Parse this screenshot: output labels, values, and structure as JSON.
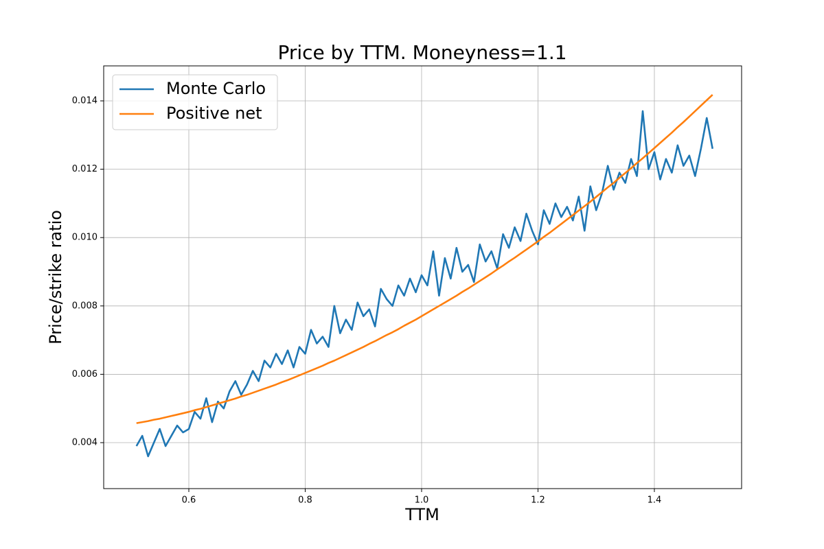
{
  "chart_data": {
    "type": "line",
    "title": "Price by TTM. Moneyness=1.1",
    "x_label": "TTM",
    "y_label": "Price/strike ratio",
    "x": [
      0.51,
      0.52,
      0.53,
      0.54,
      0.55,
      0.56,
      0.57,
      0.58,
      0.59,
      0.6,
      0.61,
      0.62,
      0.63,
      0.64,
      0.65,
      0.66,
      0.67,
      0.68,
      0.69,
      0.7,
      0.71,
      0.72,
      0.73,
      0.74,
      0.75,
      0.76,
      0.77,
      0.78,
      0.79,
      0.8,
      0.81,
      0.82,
      0.83,
      0.84,
      0.85,
      0.86,
      0.87,
      0.88,
      0.89,
      0.9,
      0.91,
      0.92,
      0.93,
      0.94,
      0.95,
      0.96,
      0.97,
      0.98,
      0.99,
      1.0,
      1.01,
      1.02,
      1.03,
      1.04,
      1.05,
      1.06,
      1.07,
      1.08,
      1.09,
      1.1,
      1.11,
      1.12,
      1.13,
      1.14,
      1.15,
      1.16,
      1.17,
      1.18,
      1.19,
      1.2,
      1.21,
      1.22,
      1.23,
      1.24,
      1.25,
      1.26,
      1.27,
      1.28,
      1.29,
      1.3,
      1.31,
      1.32,
      1.33,
      1.34,
      1.35,
      1.36,
      1.37,
      1.38,
      1.39,
      1.4,
      1.41,
      1.42,
      1.43,
      1.44,
      1.45,
      1.46,
      1.47,
      1.48,
      1.49,
      1.5
    ],
    "series": [
      {
        "name": "Monte Carlo",
        "color": "#1f77b4",
        "values": [
          0.0039,
          0.0042,
          0.0036,
          0.004,
          0.0044,
          0.0039,
          0.0042,
          0.0045,
          0.0043,
          0.0044,
          0.0049,
          0.0047,
          0.0053,
          0.0046,
          0.0052,
          0.005,
          0.0055,
          0.0058,
          0.0054,
          0.0057,
          0.0061,
          0.0058,
          0.0064,
          0.0062,
          0.0066,
          0.0063,
          0.0067,
          0.0062,
          0.0068,
          0.0066,
          0.0073,
          0.0069,
          0.0071,
          0.0068,
          0.008,
          0.0072,
          0.0076,
          0.0073,
          0.0081,
          0.0077,
          0.0079,
          0.0074,
          0.0085,
          0.0082,
          0.008,
          0.0086,
          0.0083,
          0.0088,
          0.0084,
          0.0089,
          0.0086,
          0.0096,
          0.0083,
          0.0094,
          0.0088,
          0.0097,
          0.009,
          0.0092,
          0.0087,
          0.0098,
          0.0093,
          0.0096,
          0.0091,
          0.0101,
          0.0097,
          0.0103,
          0.0099,
          0.0107,
          0.0102,
          0.0098,
          0.0108,
          0.0104,
          0.011,
          0.0106,
          0.0109,
          0.0105,
          0.0112,
          0.0102,
          0.0115,
          0.0108,
          0.0113,
          0.0121,
          0.0114,
          0.0119,
          0.0116,
          0.0123,
          0.0118,
          0.0137,
          0.012,
          0.0125,
          0.0117,
          0.0123,
          0.0119,
          0.0127,
          0.0121,
          0.0124,
          0.0118,
          0.0126,
          0.0135,
          0.0126
        ]
      },
      {
        "name": "Positive net",
        "color": "#ff7f0e",
        "values": [
          0.00457,
          0.0046,
          0.00463,
          0.00467,
          0.0047,
          0.00474,
          0.00478,
          0.00482,
          0.00486,
          0.0049,
          0.00495,
          0.00499,
          0.00504,
          0.00509,
          0.00514,
          0.00519,
          0.00524,
          0.00529,
          0.00535,
          0.0054,
          0.00546,
          0.00552,
          0.00558,
          0.00564,
          0.0057,
          0.00577,
          0.00583,
          0.0059,
          0.00597,
          0.00604,
          0.00611,
          0.00618,
          0.00625,
          0.00633,
          0.0064,
          0.00648,
          0.00656,
          0.00664,
          0.00672,
          0.0068,
          0.00689,
          0.00697,
          0.00706,
          0.00715,
          0.00723,
          0.00732,
          0.00742,
          0.00751,
          0.0076,
          0.0077,
          0.0078,
          0.0079,
          0.008,
          0.0081,
          0.0082,
          0.0083,
          0.00841,
          0.00851,
          0.00862,
          0.00873,
          0.00884,
          0.00895,
          0.00907,
          0.00918,
          0.0093,
          0.00941,
          0.00953,
          0.00965,
          0.00977,
          0.00989,
          0.01002,
          0.01014,
          0.01027,
          0.0104,
          0.01053,
          0.01066,
          0.01079,
          0.01092,
          0.01105,
          0.01119,
          0.01133,
          0.01147,
          0.0116,
          0.01175,
          0.01189,
          0.01203,
          0.01218,
          0.01232,
          0.01247,
          0.01262,
          0.01277,
          0.01292,
          0.01307,
          0.01323,
          0.01338,
          0.01354,
          0.0137,
          0.01386,
          0.01402,
          0.01418
        ]
      }
    ],
    "xlim": [
      0.4537,
      1.5499
    ],
    "xticks": [
      0.6,
      0.8,
      {
        "value": 1.0,
        "label": "1.0"
      },
      1.2,
      1.4
    ],
    "ylim": [
      0.002655,
      0.015024
    ],
    "yticks": [
      0.004,
      0.006,
      0.008,
      {
        "value": 0.01,
        "label": "0.010"
      },
      0.012,
      0.014
    ],
    "grid": true,
    "legend": "upper-left"
  }
}
